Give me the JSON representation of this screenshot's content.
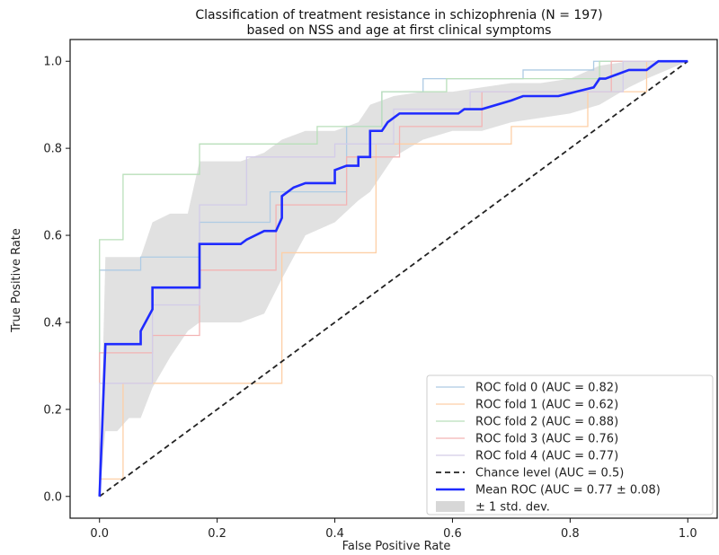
{
  "chart_data": {
    "type": "line",
    "title_line1": "Classification of treatment resistance in schizophrenia (N = 197)",
    "title_line2": "based on NSS and age at first clinical symptoms",
    "xlabel": "False Positive Rate",
    "ylabel": "True Positive Rate",
    "xlim": [
      -0.05,
      1.05
    ],
    "ylim": [
      -0.05,
      1.05
    ],
    "xticks": [
      "0.0",
      "0.2",
      "0.4",
      "0.6",
      "0.8",
      "1.0"
    ],
    "yticks": [
      "0.0",
      "0.2",
      "0.4",
      "0.6",
      "0.8",
      "1.0"
    ],
    "grid": false,
    "legend_position": "lower-right",
    "series": [
      {
        "name": "ROC fold 0 (AUC = 0.82)",
        "color": "#aecbe4",
        "x": [
          0,
          0,
          0.07,
          0.07,
          0.17,
          0.17,
          0.29,
          0.29,
          0.42,
          0.42,
          0.48,
          0.48,
          0.55,
          0.55,
          0.72,
          0.72,
          0.84,
          0.84,
          1.0
        ],
        "y": [
          0,
          0.52,
          0.52,
          0.55,
          0.55,
          0.63,
          0.63,
          0.7,
          0.7,
          0.85,
          0.85,
          0.93,
          0.93,
          0.96,
          0.96,
          0.98,
          0.98,
          1.0,
          1.0
        ]
      },
      {
        "name": "ROC fold 1 (AUC = 0.62)",
        "color": "#fdcfa6",
        "x": [
          0,
          0,
          0.04,
          0.04,
          0.08,
          0.08,
          0.31,
          0.31,
          0.47,
          0.47,
          0.7,
          0.7,
          0.83,
          0.83,
          0.93,
          0.93,
          1.0
        ],
        "y": [
          0,
          0.04,
          0.04,
          0.26,
          0.26,
          0.26,
          0.26,
          0.56,
          0.56,
          0.81,
          0.81,
          0.85,
          0.85,
          0.93,
          0.93,
          1.0,
          1.0
        ]
      },
      {
        "name": "ROC fold 2 (AUC = 0.88)",
        "color": "#b9dfba",
        "x": [
          0,
          0,
          0.04,
          0.04,
          0.09,
          0.09,
          0.17,
          0.17,
          0.37,
          0.37,
          0.48,
          0.48,
          0.59,
          0.59,
          0.85,
          0.85,
          1.0
        ],
        "y": [
          0,
          0.59,
          0.59,
          0.74,
          0.74,
          0.74,
          0.74,
          0.81,
          0.81,
          0.85,
          0.85,
          0.93,
          0.93,
          0.96,
          0.96,
          1.0,
          1.0
        ]
      },
      {
        "name": "ROC fold 3 (AUC = 0.76)",
        "color": "#f3b3b3",
        "x": [
          0,
          0,
          0.03,
          0.03,
          0.09,
          0.09,
          0.17,
          0.17,
          0.3,
          0.3,
          0.42,
          0.42,
          0.51,
          0.51,
          0.65,
          0.65,
          0.87,
          0.87,
          1.0
        ],
        "y": [
          0,
          0.33,
          0.33,
          0.33,
          0.33,
          0.37,
          0.37,
          0.52,
          0.52,
          0.67,
          0.67,
          0.78,
          0.78,
          0.85,
          0.85,
          0.93,
          0.93,
          1.0,
          1.0
        ]
      },
      {
        "name": "ROC fold 4 (AUC = 0.77)",
        "color": "#d3cce8",
        "x": [
          0,
          0,
          0.09,
          0.09,
          0.17,
          0.17,
          0.25,
          0.25,
          0.4,
          0.4,
          0.5,
          0.5,
          0.63,
          0.63,
          0.89,
          0.89,
          1.0
        ],
        "y": [
          0,
          0.26,
          0.26,
          0.44,
          0.44,
          0.67,
          0.67,
          0.78,
          0.78,
          0.81,
          0.81,
          0.89,
          0.89,
          0.93,
          0.93,
          1.0,
          1.0
        ]
      },
      {
        "name": "Chance level (AUC = 0.5)",
        "color": "#222222",
        "dashed": true,
        "x": [
          0,
          1
        ],
        "y": [
          0,
          1
        ]
      },
      {
        "name": "Mean ROC (AUC = 0.77 ± 0.08)",
        "color": "#1f2bff",
        "x": [
          0.0,
          0.01,
          0.03,
          0.05,
          0.07,
          0.07,
          0.09,
          0.09,
          0.12,
          0.15,
          0.17,
          0.17,
          0.2,
          0.22,
          0.24,
          0.25,
          0.28,
          0.3,
          0.31,
          0.31,
          0.32,
          0.33,
          0.35,
          0.36,
          0.38,
          0.4,
          0.4,
          0.42,
          0.42,
          0.44,
          0.44,
          0.45,
          0.46,
          0.46,
          0.48,
          0.49,
          0.51,
          0.55,
          0.58,
          0.61,
          0.62,
          0.65,
          0.7,
          0.72,
          0.75,
          0.78,
          0.81,
          0.84,
          0.85,
          0.86,
          0.88,
          0.9,
          0.93,
          0.95,
          1.0
        ],
        "y": [
          0.0,
          0.35,
          0.35,
          0.35,
          0.35,
          0.38,
          0.43,
          0.48,
          0.48,
          0.48,
          0.48,
          0.58,
          0.58,
          0.58,
          0.58,
          0.59,
          0.61,
          0.61,
          0.64,
          0.69,
          0.7,
          0.71,
          0.72,
          0.72,
          0.72,
          0.72,
          0.75,
          0.76,
          0.76,
          0.76,
          0.78,
          0.78,
          0.78,
          0.84,
          0.84,
          0.86,
          0.88,
          0.88,
          0.88,
          0.88,
          0.89,
          0.89,
          0.91,
          0.92,
          0.92,
          0.92,
          0.93,
          0.94,
          0.96,
          0.96,
          0.97,
          0.98,
          0.98,
          1.0,
          1.0
        ]
      }
    ],
    "std_band": {
      "name": "± 1 std. dev.",
      "color": "#bdbdbd",
      "x": [
        0.0,
        0.01,
        0.03,
        0.05,
        0.07,
        0.09,
        0.12,
        0.15,
        0.17,
        0.2,
        0.24,
        0.28,
        0.31,
        0.35,
        0.4,
        0.44,
        0.46,
        0.5,
        0.55,
        0.6,
        0.65,
        0.7,
        0.75,
        0.8,
        0.85,
        0.9,
        0.93,
        1.0
      ],
      "upper": [
        0.0,
        0.55,
        0.55,
        0.55,
        0.55,
        0.63,
        0.65,
        0.65,
        0.77,
        0.77,
        0.77,
        0.79,
        0.82,
        0.84,
        0.84,
        0.86,
        0.9,
        0.92,
        0.93,
        0.93,
        0.94,
        0.95,
        0.95,
        0.96,
        0.99,
        1.0,
        1.0,
        1.0
      ],
      "lower": [
        0.0,
        0.15,
        0.15,
        0.18,
        0.18,
        0.25,
        0.32,
        0.38,
        0.4,
        0.4,
        0.4,
        0.42,
        0.5,
        0.6,
        0.63,
        0.68,
        0.7,
        0.78,
        0.82,
        0.84,
        0.84,
        0.86,
        0.87,
        0.88,
        0.9,
        0.94,
        0.96,
        1.0
      ]
    },
    "legend": [
      {
        "label": "ROC fold 0 (AUC = 0.82)",
        "color": "#aecbe4",
        "style": "line"
      },
      {
        "label": "ROC fold 1 (AUC = 0.62)",
        "color": "#fdcfa6",
        "style": "line"
      },
      {
        "label": "ROC fold 2 (AUC = 0.88)",
        "color": "#b9dfba",
        "style": "line"
      },
      {
        "label": "ROC fold 3 (AUC = 0.76)",
        "color": "#f3b3b3",
        "style": "line"
      },
      {
        "label": "ROC fold 4 (AUC = 0.77)",
        "color": "#d3cce8",
        "style": "line"
      },
      {
        "label": "Chance level (AUC = 0.5)",
        "color": "#222222",
        "style": "dashed"
      },
      {
        "label": "Mean ROC (AUC = 0.77 ± 0.08)",
        "color": "#1f2bff",
        "style": "thick"
      },
      {
        "label": "± 1 std. dev.",
        "color": "#bdbdbd",
        "style": "patch"
      }
    ]
  }
}
